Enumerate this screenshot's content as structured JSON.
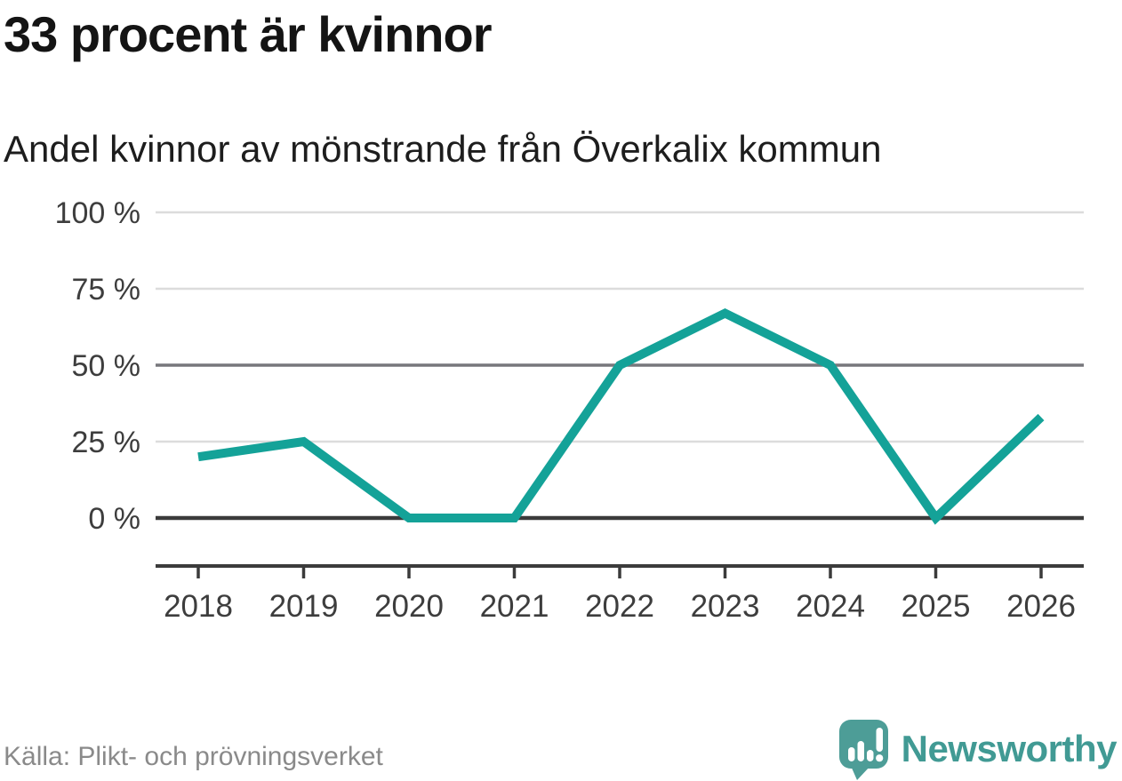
{
  "header": {
    "title": "33 procent är kvinnor",
    "subtitle": "Andel kvinnor av mönstrande från Överkalix kommun"
  },
  "chart_data": {
    "type": "line",
    "x": [
      "2018",
      "2019",
      "2020",
      "2021",
      "2022",
      "2023",
      "2024",
      "2025",
      "2026"
    ],
    "series": [
      {
        "name": "Andel kvinnor",
        "values": [
          20,
          25,
          0,
          0,
          50,
          67,
          50,
          0,
          33
        ]
      }
    ],
    "unit": "%",
    "ylabel": "",
    "xlabel": "",
    "ylim": [
      0,
      100
    ],
    "y_ticks": [
      0,
      25,
      50,
      75,
      100
    ],
    "y_tick_suffix": " %",
    "grid": "horizontal",
    "emphasized_gridlines": {
      "mid": 50,
      "baseline": 0
    },
    "legend_position": "none"
  },
  "footer": {
    "source": "Källa: Plikt- och prövningsverket",
    "brand": "Newsworthy",
    "logo_icon": "newsworthy-speech-bubble-bar-chart-icon"
  },
  "colors": {
    "line": "#14a298",
    "grid_light": "#dcdcdc",
    "grid_mid": "#77777b",
    "grid_dark": "#3b3b3b",
    "axis": "#3b3b3b",
    "tick_label": "#3d3d3d",
    "title": "#141414",
    "source": "#8a8a8a",
    "brand_text": "#419a94",
    "logo_fill": "#4d9d97"
  }
}
